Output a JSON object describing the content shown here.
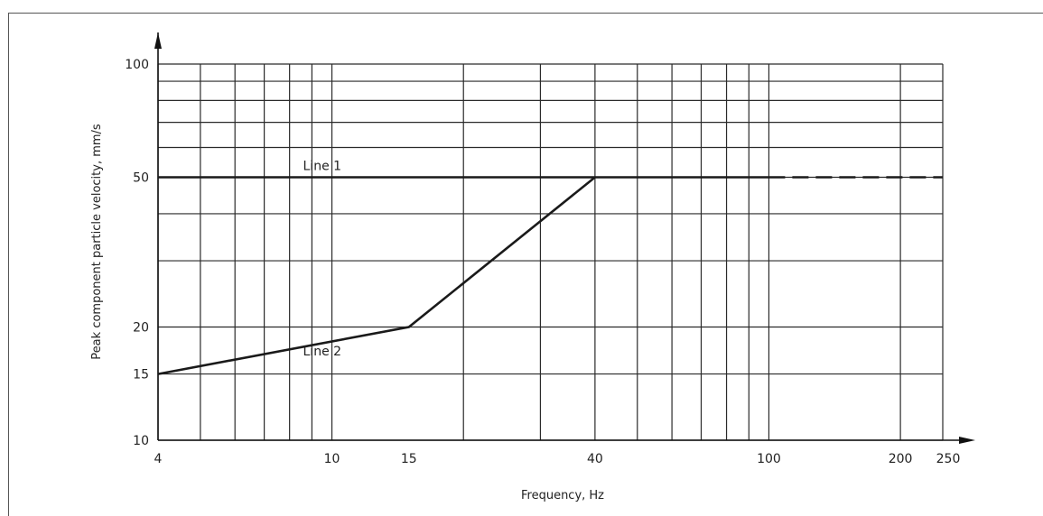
{
  "chart_data": {
    "type": "line",
    "title": "",
    "xlabel": "Frequency, Hz",
    "ylabel": "Peak component particle velocity, mm/s",
    "x_scale": "log",
    "y_scale": "log",
    "xlim": [
      4,
      250
    ],
    "ylim": [
      10,
      100
    ],
    "x_tick_labels": [
      "4",
      "10",
      "15",
      "40",
      "100",
      "200",
      "250"
    ],
    "y_tick_labels": [
      "10",
      "15",
      "20",
      "50",
      "100"
    ],
    "x_gridlines": [
      4,
      5,
      6,
      7,
      8,
      9,
      10,
      20,
      30,
      40,
      50,
      60,
      70,
      80,
      90,
      100,
      200,
      250
    ],
    "y_gridlines": [
      10,
      15,
      20,
      30,
      40,
      50,
      60,
      70,
      80,
      90,
      100
    ],
    "grid": true,
    "series": [
      {
        "name": "Line 1",
        "style": "solid",
        "x": [
          4,
          100
        ],
        "y": [
          50,
          50
        ]
      },
      {
        "name": "",
        "style": "dashed",
        "x": [
          100,
          250
        ],
        "y": [
          50,
          50
        ]
      },
      {
        "name": "Line 2",
        "style": "solid",
        "x": [
          4,
          15,
          40
        ],
        "y": [
          15,
          20,
          50
        ]
      }
    ],
    "colors": {
      "line": "#1a1a1a",
      "grid": "#2a2a2a",
      "axis": "#111111"
    }
  }
}
